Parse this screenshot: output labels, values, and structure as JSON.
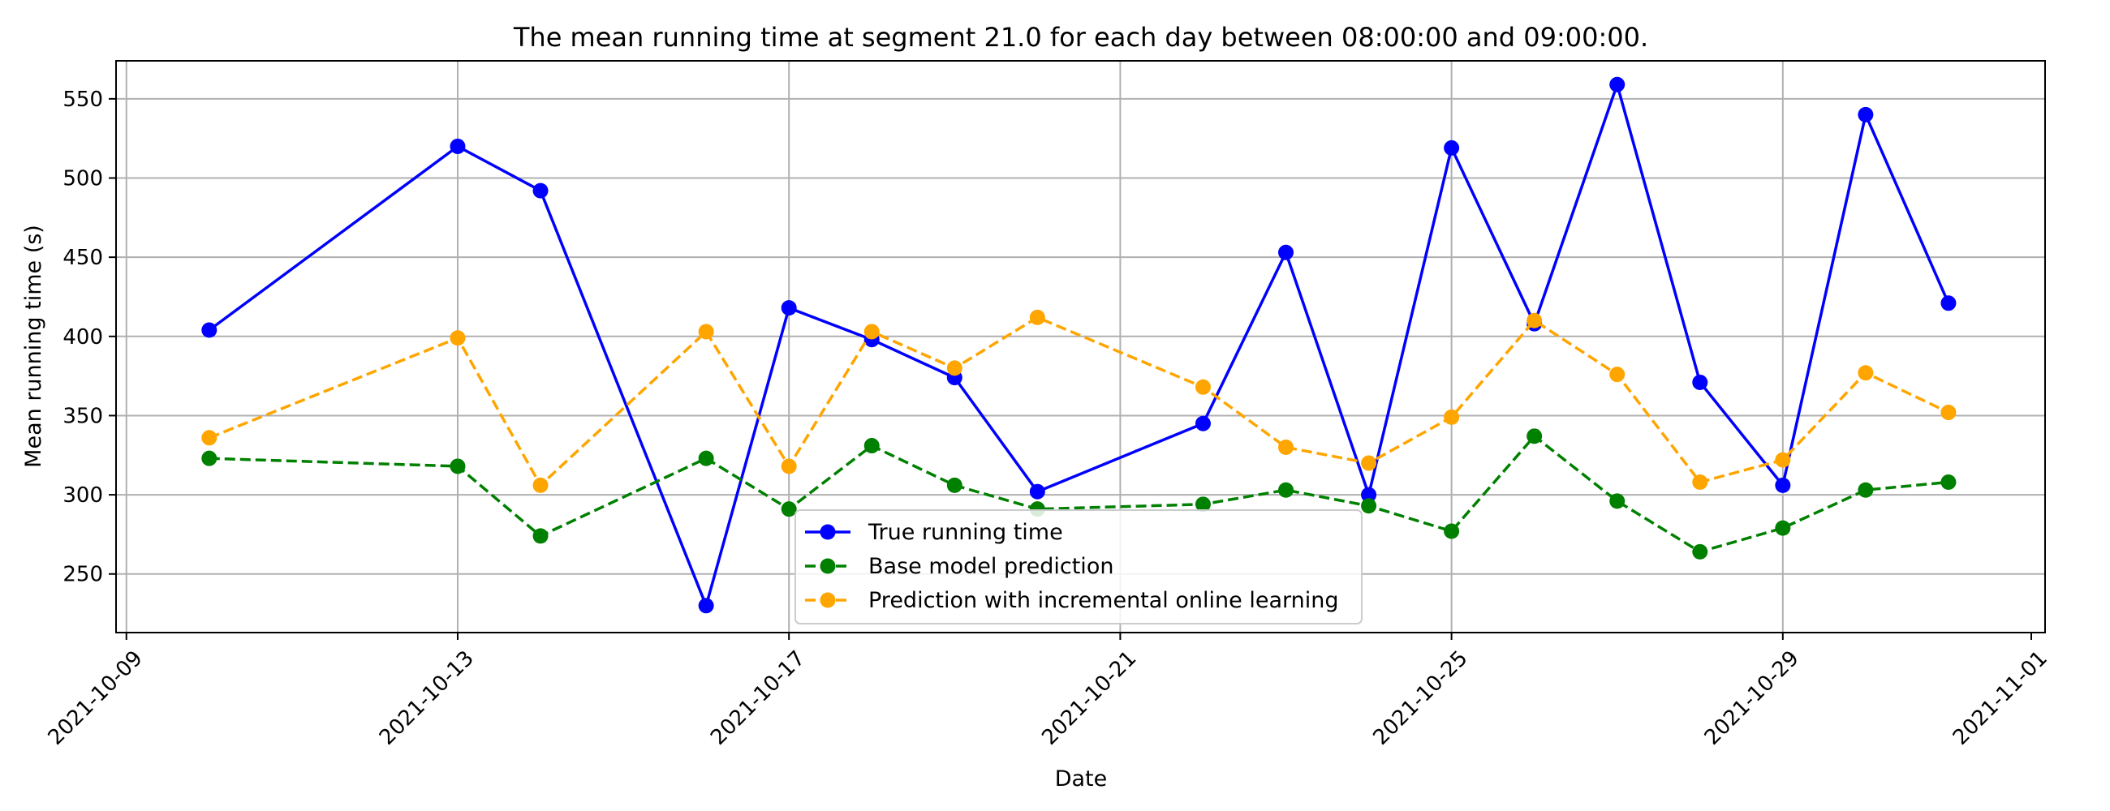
{
  "chart_data": {
    "type": "line",
    "title": "The mean running time at segment 21.0 for each day between 08:00:00 and 09:00:00.",
    "xlabel": "Date",
    "ylabel": "Mean running time (s)",
    "grid": true,
    "legend_placement": "lower-center",
    "x_range": [
      "2021-10-08T21:00",
      "2021-11-01T04:00"
    ],
    "ylim": [
      213,
      574
    ],
    "x_ticks": [
      "2021-10-09",
      "2021-10-13",
      "2021-10-17",
      "2021-10-21",
      "2021-10-25",
      "2021-10-29",
      "2021-11-01"
    ],
    "y_ticks": [
      250,
      300,
      350,
      400,
      450,
      500,
      550
    ],
    "x": [
      "2021-10-10",
      "2021-10-13",
      "2021-10-14",
      "2021-10-16",
      "2021-10-17",
      "2021-10-18",
      "2021-10-19",
      "2021-10-20",
      "2021-10-22",
      "2021-10-23",
      "2021-10-24",
      "2021-10-25",
      "2021-10-26",
      "2021-10-27",
      "2021-10-28",
      "2021-10-29",
      "2021-10-30",
      "2021-10-31"
    ],
    "series": [
      {
        "name": "True running time",
        "color": "#0000ff",
        "line_style": "solid",
        "values": [
          404,
          520,
          492,
          230,
          418,
          398,
          374,
          302,
          345,
          453,
          300,
          519,
          408,
          559,
          371,
          306,
          540,
          421
        ]
      },
      {
        "name": "Base model prediction",
        "color": "#008000",
        "line_style": "dashed",
        "values": [
          323,
          318,
          274,
          323,
          291,
          331,
          306,
          291,
          294,
          303,
          293,
          277,
          337,
          296,
          264,
          279,
          303,
          308
        ]
      },
      {
        "name": "Prediction with incremental online learning",
        "color": "#ffa500",
        "line_style": "dashed",
        "values": [
          336,
          399,
          306,
          403,
          318,
          403,
          380,
          412,
          368,
          330,
          320,
          349,
          410,
          376,
          308,
          322,
          377,
          352
        ]
      }
    ]
  }
}
